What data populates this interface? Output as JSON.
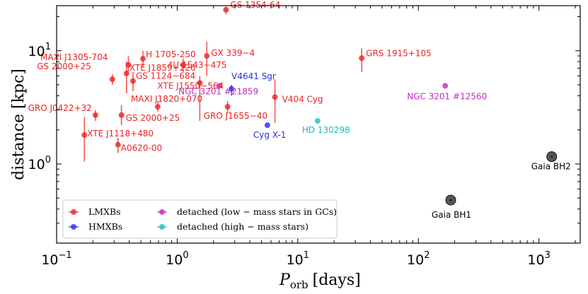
{
  "chart_data": {
    "type": "scatter",
    "xscale": "log",
    "yscale": "log",
    "xlim": [
      0.1,
      2200
    ],
    "ylim": [
      0.2,
      25
    ],
    "xlabel_main": "P",
    "xlabel_sub": "orb",
    "xlabel_unit": "[days]",
    "ylabel": "distance [kpc]",
    "xticks": [
      {
        "value": 0.1,
        "base": "10",
        "exp": "−1"
      },
      {
        "value": 1,
        "base": "10",
        "exp": "0"
      },
      {
        "value": 10,
        "base": "10",
        "exp": "1"
      },
      {
        "value": 100,
        "base": "10",
        "exp": "2"
      },
      {
        "value": 1000,
        "base": "10",
        "exp": "3"
      }
    ],
    "yticks": [
      {
        "value": 1,
        "base": "10",
        "exp": "0"
      },
      {
        "value": 10,
        "base": "10",
        "exp": "1"
      }
    ],
    "colors": {
      "LMXB": "#ee2222",
      "HMXB": "#2a2aee",
      "GC": "#c22bc2",
      "HighMass": "#22bbbb",
      "Gaia": "#444444"
    },
    "legend": [
      {
        "key": "LMXB",
        "label": "LMXBs"
      },
      {
        "key": "HMXB",
        "label": "HMXBs"
      },
      {
        "key": "GC",
        "label": "detached (low − mass stars in GCs)"
      },
      {
        "key": "HighMass",
        "label": "detached (high − mass stars)"
      }
    ],
    "points": [
      {
        "name": "GS 1354-64",
        "group": "LMXB",
        "x": 2.54,
        "y": 23.0,
        "ylo": 21.0,
        "yhi": 24.5
      },
      {
        "name": "H 1705-250",
        "group": "LMXB",
        "x": 0.52,
        "y": 8.5,
        "ylo": 7.2,
        "yhi": 10.0
      },
      {
        "name": "GX 339−4",
        "group": "LMXB",
        "x": 1.76,
        "y": 9.0,
        "ylo": 6.0,
        "yhi": 12.0
      },
      {
        "name": "MAXI J1305-704",
        "group": "LMXB",
        "x": 0.394,
        "y": 7.5,
        "ylo": 6.5,
        "yhi": 9.0
      },
      {
        "name": "4U 1543−475",
        "group": "LMXB",
        "x": 1.12,
        "y": 7.5,
        "ylo": 6.5,
        "yhi": 8.5
      },
      {
        "name": "XTE J1859+226",
        "group": "LMXB",
        "x": 0.38,
        "y": 6.3,
        "ylo": 4.2,
        "yhi": 8.0
      },
      {
        "name": "GS 2000+25",
        "group": "LMXB",
        "x": 0.29,
        "y": 5.6,
        "ylo": 5.0,
        "yhi": 6.2
      },
      {
        "name": "GS 1124−684",
        "group": "LMXB",
        "x": 0.43,
        "y": 5.4,
        "ylo": 4.4,
        "yhi": 6.5
      },
      {
        "name": "XTE J1550−564",
        "group": "LMXB",
        "x": 1.54,
        "y": 5.2,
        "ylo": 2.4,
        "yhi": 6.0
      },
      {
        "name": "MAXI J1820+070",
        "group": "LMXB",
        "x": 0.69,
        "y": 3.2,
        "ylo": 2.9,
        "yhi": 3.6
      },
      {
        "name": "V404 Cyg",
        "group": "LMXB",
        "x": 6.47,
        "y": 3.9,
        "ylo": 2.3,
        "yhi": 5.6
      },
      {
        "name": "GRO J1655−40",
        "group": "LMXB",
        "x": 2.62,
        "y": 3.2,
        "ylo": 2.8,
        "yhi": 3.6
      },
      {
        "name": "GRO J0422+32",
        "group": "LMXB",
        "x": 0.21,
        "y": 2.7,
        "ylo": 2.4,
        "yhi": 3.0
      },
      {
        "name": "GS 2000+25 ",
        "group": "LMXB",
        "x": 0.345,
        "y": 2.7,
        "ylo": 2.2,
        "yhi": 3.3
      },
      {
        "name": "XTE J1118+480",
        "group": "LMXB",
        "x": 0.17,
        "y": 1.8,
        "ylo": 1.05,
        "yhi": 2.6
      },
      {
        "name": "A0620-00",
        "group": "LMXB",
        "x": 0.323,
        "y": 1.48,
        "ylo": 1.25,
        "yhi": 1.7
      },
      {
        "name": "GRS 1915+105",
        "group": "LMXB",
        "x": 33.9,
        "y": 8.6,
        "ylo": 6.5,
        "yhi": 10.5
      },
      {
        "name": "V4641 Sgr",
        "group": "HMXB",
        "x": 2.82,
        "y": 4.6,
        "ylo": 4.0,
        "yhi": 5.0
      },
      {
        "name": "Cyg X-1",
        "group": "HMXB",
        "x": 5.6,
        "y": 2.2,
        "ylo": 2.2,
        "yhi": 2.2
      },
      {
        "name": "NGC 3201 #21859",
        "group": "GC",
        "x": 2.24,
        "y": 4.9,
        "ylo": 4.9,
        "yhi": 4.9
      },
      {
        "name": "NGC 3201 #12560",
        "group": "GC",
        "x": 167,
        "y": 4.9,
        "ylo": 4.9,
        "yhi": 4.9
      },
      {
        "name": "HD 130298",
        "group": "HighMass",
        "x": 14.6,
        "y": 2.4,
        "ylo": 2.4,
        "yhi": 2.4
      },
      {
        "name": "Gaia BH1",
        "group": "Gaia",
        "x": 185.6,
        "y": 0.48,
        "ylo": 0.48,
        "yhi": 0.48
      },
      {
        "name": "Gaia BH2",
        "group": "Gaia",
        "x": 1277,
        "y": 1.16,
        "ylo": 1.16,
        "yhi": 1.16
      }
    ]
  }
}
